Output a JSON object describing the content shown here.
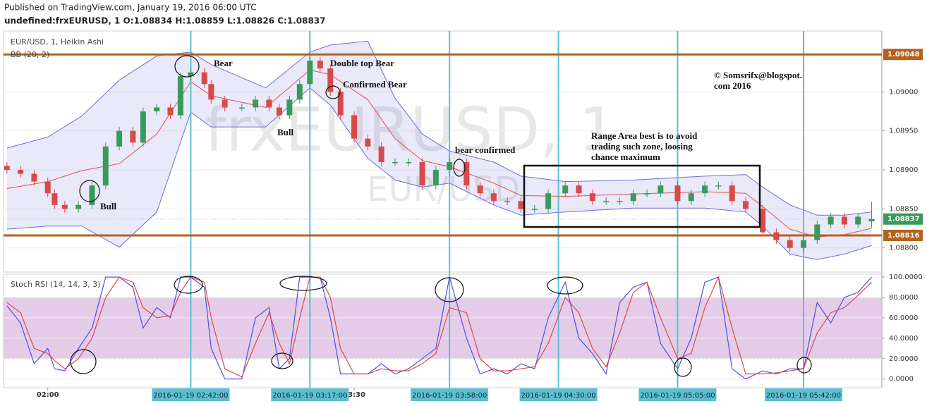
{
  "header": {
    "published": "Published on TradingView.com, January 19, 2016 06:00 UTC",
    "symbol_line": "undefined:frxEURUSD, 1  O:1.08834 H:1.08859 L:1.08826 C:1.08837"
  },
  "chart_data": [
    {
      "type": "candlestick",
      "title": "EUR/USD, 1, Heikin Ashi",
      "up_color": "#3a9a5c",
      "down_color": "#d64a4a",
      "watermark": [
        "frxEURUSD, 1",
        "EUR/USD"
      ],
      "x": [
        -12,
        -8,
        -4,
        0,
        2,
        5,
        9,
        13,
        17,
        21,
        25,
        28,
        32,
        36,
        39,
        42,
        46,
        48,
        52,
        57,
        61,
        65,
        68,
        71,
        74,
        77,
        80,
        83,
        86,
        90,
        94,
        98,
        102,
        106,
        110,
        114,
        118,
        123,
        127,
        131,
        135,
        139,
        143,
        147,
        152,
        156,
        160,
        164,
        168,
        172,
        176,
        180,
        185,
        189,
        193,
        197,
        201,
        205,
        210,
        214,
        218,
        222,
        226,
        230,
        234,
        238,
        242
      ],
      "open": [
        1.08905,
        1.089,
        1.08895,
        1.08885,
        1.0887,
        1.08855,
        1.0885,
        1.08855,
        1.0888,
        1.0893,
        1.0895,
        1.08935,
        1.08975,
        1.0898,
        1.0897,
        1.0902,
        1.09025,
        1.0901,
        1.0899,
        1.0898,
        1.0898,
        1.0899,
        1.0898,
        1.0897,
        1.0899,
        1.0901,
        1.0904,
        1.0903,
        1.09,
        1.0897,
        1.0894,
        1.0893,
        1.0891,
        1.0891,
        1.0891,
        1.0888,
        1.089,
        1.0891,
        1.0888,
        1.0887,
        1.0886,
        1.0886,
        1.0885,
        1.0885,
        1.0887,
        1.0888,
        1.0887,
        1.0886,
        1.0886,
        1.0886,
        1.0887,
        1.0887,
        1.0888,
        1.0886,
        1.0887,
        1.0888,
        1.0888,
        1.0886,
        1.0885,
        1.0882,
        1.0881,
        1.088,
        1.0881,
        1.0883,
        1.0884,
        1.0883,
        1.08834
      ],
      "high": [
        1.0891,
        1.08905,
        1.089,
        1.0889,
        1.08875,
        1.0886,
        1.0886,
        1.08885,
        1.08935,
        1.08955,
        1.08955,
        1.0898,
        1.08985,
        1.08985,
        1.09025,
        1.0903,
        1.0903,
        1.09015,
        1.08995,
        1.08985,
        1.08995,
        1.08995,
        1.08985,
        1.08995,
        1.09015,
        1.09045,
        1.09045,
        1.09035,
        1.09005,
        1.08975,
        1.08945,
        1.08935,
        1.08915,
        1.08915,
        1.08915,
        1.08905,
        1.08915,
        1.08915,
        1.08885,
        1.08875,
        1.08865,
        1.08865,
        1.08855,
        1.08875,
        1.08885,
        1.08885,
        1.08875,
        1.08865,
        1.08865,
        1.08875,
        1.08875,
        1.08885,
        1.08885,
        1.08875,
        1.08885,
        1.08885,
        1.08885,
        1.08865,
        1.08855,
        1.08825,
        1.08815,
        1.08815,
        1.08835,
        1.08845,
        1.08845,
        1.08845,
        1.08859
      ],
      "low": [
        1.08895,
        1.0889,
        1.0888,
        1.08865,
        1.0885,
        1.08845,
        1.08845,
        1.0885,
        1.08875,
        1.08925,
        1.0893,
        1.0893,
        1.0897,
        1.08965,
        1.08965,
        1.09015,
        1.09005,
        1.08985,
        1.08975,
        1.08975,
        1.08975,
        1.08975,
        1.08965,
        1.08965,
        1.08985,
        1.09005,
        1.09025,
        1.08995,
        1.08965,
        1.08935,
        1.08925,
        1.08905,
        1.08905,
        1.08905,
        1.08875,
        1.08875,
        1.08895,
        1.08875,
        1.08865,
        1.08855,
        1.08855,
        1.08845,
        1.08845,
        1.08845,
        1.08865,
        1.08865,
        1.08855,
        1.08855,
        1.08855,
        1.08855,
        1.08865,
        1.08865,
        1.08855,
        1.08855,
        1.08865,
        1.08875,
        1.08855,
        1.08845,
        1.08815,
        1.08805,
        1.08795,
        1.08795,
        1.08805,
        1.08825,
        1.08825,
        1.08825,
        1.08826
      ],
      "close": [
        1.089,
        1.08895,
        1.08885,
        1.0887,
        1.08855,
        1.0885,
        1.08855,
        1.0888,
        1.0893,
        1.0895,
        1.08935,
        1.08975,
        1.0898,
        1.0897,
        1.0902,
        1.09025,
        1.0901,
        1.0899,
        1.0898,
        1.0898,
        1.0899,
        1.0898,
        1.0897,
        1.0899,
        1.0901,
        1.0904,
        1.0903,
        1.09,
        1.0897,
        1.0894,
        1.0893,
        1.0891,
        1.0891,
        1.0891,
        1.0888,
        1.089,
        1.0891,
        1.0888,
        1.0887,
        1.0886,
        1.0886,
        1.0885,
        1.0885,
        1.0887,
        1.0888,
        1.0887,
        1.0886,
        1.0886,
        1.0886,
        1.0887,
        1.0887,
        1.0888,
        1.0886,
        1.0887,
        1.0888,
        1.0888,
        1.0886,
        1.0885,
        1.0882,
        1.0881,
        1.088,
        1.0881,
        1.0883,
        1.0884,
        1.0883,
        1.0884,
        1.08837
      ],
      "bands": {
        "name": "BB (20, 2)",
        "band_color": "#6e6ed8",
        "basis_color": "#e05050",
        "x": [
          -12,
          0,
          10,
          21,
          32,
          42,
          48,
          64,
          77,
          83,
          94,
          102,
          110,
          118,
          131,
          139,
          152,
          172,
          193,
          205,
          210,
          218,
          226,
          234,
          242
        ],
        "upper": [
          1.08928,
          1.08942,
          1.08969,
          1.09015,
          1.09046,
          1.09051,
          1.09035,
          1.09005,
          1.09051,
          1.0906,
          1.09065,
          1.08992,
          1.08946,
          1.08924,
          1.0891,
          1.08892,
          1.08885,
          1.08887,
          1.08892,
          1.08894,
          1.08878,
          1.08855,
          1.08842,
          1.08842,
          1.08846
        ],
        "basis": [
          1.08876,
          1.08885,
          1.08899,
          1.08908,
          1.08946,
          1.09013,
          1.08995,
          1.0898,
          1.09028,
          1.09022,
          1.0899,
          1.0894,
          1.08912,
          1.08904,
          1.08883,
          1.08867,
          1.08866,
          1.08869,
          1.08872,
          1.0887,
          1.08853,
          1.08824,
          1.08814,
          1.08817,
          1.08825
        ],
        "lower": [
          1.08824,
          1.08828,
          1.08828,
          1.08801,
          1.08846,
          1.08974,
          1.08955,
          1.08955,
          1.09005,
          1.08983,
          1.08915,
          1.08887,
          1.08878,
          1.08883,
          1.08855,
          1.08842,
          1.08846,
          1.08851,
          1.08851,
          1.08846,
          1.08828,
          1.08792,
          1.08785,
          1.08792,
          1.08803
        ]
      },
      "levels": [
        {
          "value": 1.09048,
          "color": "#b5621b"
        },
        {
          "value": 1.08816,
          "color": "#b5621b"
        }
      ],
      "last": {
        "value": 1.08837,
        "color": "#3a9a5c"
      },
      "xlim": [
        -13,
        245
      ],
      "ylim": [
        1.08769,
        1.09078
      ],
      "yticks": [
        {
          "value": 1.088,
          "label": "1.08800"
        },
        {
          "value": 1.0885,
          "label": "1.08850"
        },
        {
          "value": 1.089,
          "label": "1.08900"
        },
        {
          "value": 1.0895,
          "label": "1.08950"
        },
        {
          "value": 1.09,
          "label": "1.09000"
        }
      ],
      "xticks": [
        {
          "value": 0,
          "label": "02:00"
        },
        {
          "value": 90,
          "label": "03:30"
        }
      ],
      "grid": true,
      "markers": [
        {
          "value": 42,
          "label": "2016-01-19 02:42:00"
        },
        {
          "value": 77,
          "label": "2016-01-19 03:17:00"
        },
        {
          "value": 118,
          "label": "2016-01-19 03:58:00"
        },
        {
          "value": 150,
          "label": "2016-01-19 04:30:00"
        },
        {
          "value": 185,
          "label": "2016-01-19 05:05:00"
        },
        {
          "value": 222,
          "label": "2016-01-19 05:42:00"
        }
      ],
      "marker_color": "#5bbfd0",
      "annotations": [
        {
          "lines": [
            "Bear"
          ]
        },
        {
          "lines": [
            "Double top Bear"
          ]
        },
        {
          "lines": [
            "Confirmed Bear"
          ]
        },
        {
          "lines": [
            "Bull"
          ]
        },
        {
          "lines": [
            "Bull"
          ]
        },
        {
          "lines": [
            "bear confirmed"
          ]
        },
        {
          "lines": [
            "Range Area best is to avoid",
            "trading such zone, loosing",
            "chance maximum"
          ]
        },
        {
          "lines": [
            "© Somsrifx@blogspot.",
            "com 2016"
          ]
        }
      ]
    },
    {
      "type": "line",
      "title": "Stoch RSI (14, 14, 3, 3)",
      "x": [
        -12,
        -8,
        -4,
        0,
        2,
        5,
        9,
        13,
        17,
        21,
        25,
        28,
        32,
        36,
        39,
        42,
        46,
        48,
        52,
        57,
        61,
        65,
        68,
        71,
        74,
        77,
        80,
        83,
        86,
        90,
        94,
        98,
        102,
        106,
        110,
        114,
        118,
        123,
        127,
        131,
        135,
        139,
        143,
        147,
        152,
        156,
        160,
        164,
        168,
        172,
        176,
        180,
        185,
        189,
        193,
        197,
        201,
        205,
        210,
        214,
        218,
        222,
        226,
        230,
        234,
        238,
        242
      ],
      "series": [
        {
          "color": "#5050e0",
          "values": [
            72,
            55,
            15,
            30,
            10,
            8,
            30,
            50,
            100,
            100,
            90,
            50,
            70,
            60,
            100,
            100,
            90,
            30,
            0,
            0,
            60,
            70,
            10,
            20,
            100,
            100,
            100,
            60,
            5,
            5,
            5,
            15,
            5,
            10,
            20,
            30,
            100,
            40,
            5,
            10,
            5,
            15,
            10,
            60,
            95,
            40,
            25,
            5,
            75,
            90,
            95,
            35,
            10,
            40,
            95,
            100,
            10,
            0,
            8,
            5,
            10,
            10,
            75,
            55,
            80,
            85,
            100
          ]
        },
        {
          "color": "#e04848",
          "values": [
            75,
            65,
            30,
            25,
            18,
            10,
            20,
            40,
            80,
            100,
            95,
            70,
            60,
            62,
            85,
            100,
            95,
            60,
            10,
            2,
            35,
            65,
            35,
            15,
            60,
            100,
            100,
            80,
            30,
            5,
            5,
            10,
            8,
            8,
            15,
            25,
            70,
            65,
            20,
            8,
            8,
            10,
            12,
            35,
            80,
            65,
            30,
            12,
            45,
            85,
            95,
            60,
            20,
            25,
            70,
            100,
            50,
            5,
            5,
            6,
            8,
            10,
            45,
            65,
            70,
            82,
            95
          ]
        }
      ],
      "band": [
        20,
        80
      ],
      "band_color": "#d9b7de",
      "xlim": [
        -13,
        245
      ],
      "ylim": [
        -8.5,
        102.8
      ],
      "yticks": [
        {
          "value": 0,
          "label": "0.0000"
        },
        {
          "value": 20,
          "label": "20.0000"
        },
        {
          "value": 40,
          "label": "40.0000"
        },
        {
          "value": 60,
          "label": "60.0000"
        },
        {
          "value": 80,
          "label": "80.0000"
        },
        {
          "value": 100,
          "label": "100.0000"
        }
      ]
    }
  ]
}
